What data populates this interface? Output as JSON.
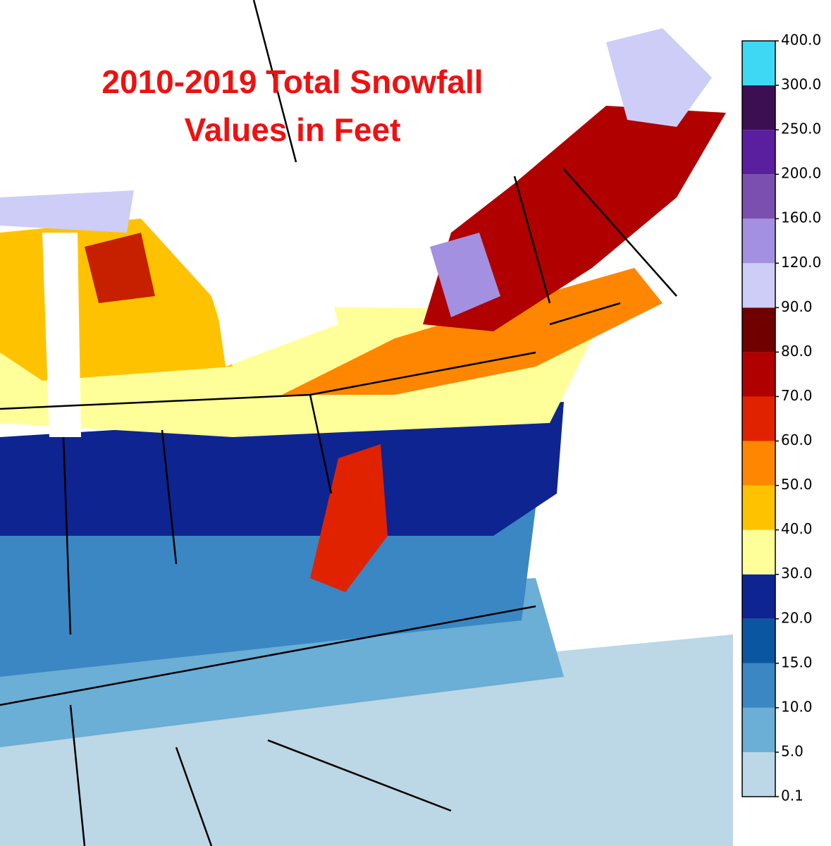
{
  "title": {
    "lines": [
      "2010-2019 Total Snowfall",
      "Values in Feet"
    ]
  },
  "colorbar": {
    "ticks": [
      {
        "value": 0.1,
        "label": "0.1"
      },
      {
        "value": 5,
        "label": "5.0"
      },
      {
        "value": 10,
        "label": "10.0"
      },
      {
        "value": 15,
        "label": "15.0"
      },
      {
        "value": 20,
        "label": "20.0"
      },
      {
        "value": 30,
        "label": "30.0"
      },
      {
        "value": 40,
        "label": "40.0"
      },
      {
        "value": 50,
        "label": "50.0"
      },
      {
        "value": 60,
        "label": "60.0"
      },
      {
        "value": 70,
        "label": "70.0"
      },
      {
        "value": 80,
        "label": "80.0"
      },
      {
        "value": 90,
        "label": "90.0"
      },
      {
        "value": 120,
        "label": "120.0"
      },
      {
        "value": 160,
        "label": "160.0"
      },
      {
        "value": 200,
        "label": "200.0"
      },
      {
        "value": 250,
        "label": "250.0"
      },
      {
        "value": 300,
        "label": "300.0"
      },
      {
        "value": 400,
        "label": "400.0"
      }
    ],
    "colors": [
      "#bcd7e6",
      "#6baed6",
      "#3a87c4",
      "#0b56a0",
      "#0e2490",
      "#ffff99",
      "#ffc200",
      "#ff8600",
      "#e12200",
      "#b00000",
      "#700000",
      "#cdcdf7",
      "#a390e0",
      "#7a4fb0",
      "#5a1f9e",
      "#3c0f52",
      "#3ed8f5"
    ]
  }
}
